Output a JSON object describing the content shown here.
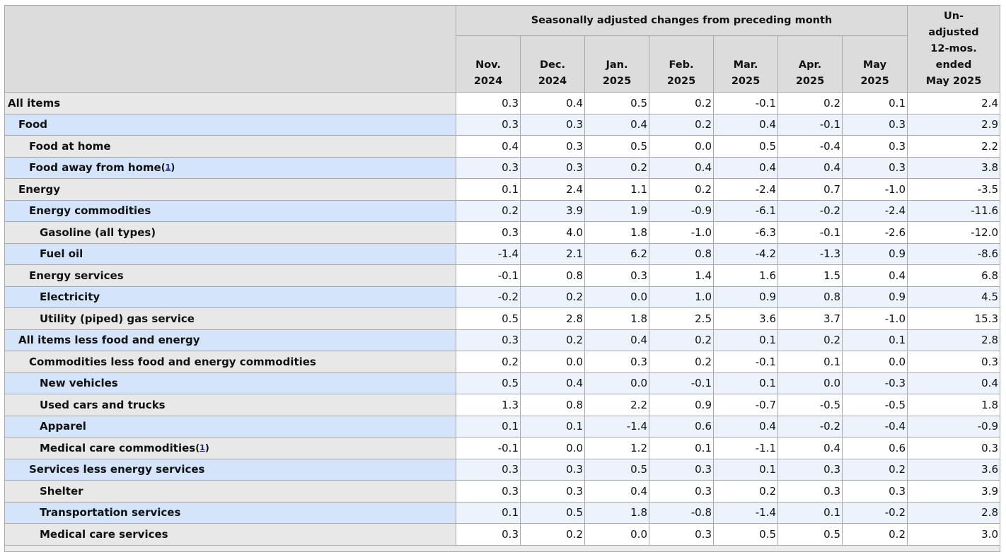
{
  "header": {
    "group_label": "Seasonally adjusted changes from preceding month",
    "months": [
      {
        "line1": "Nov.",
        "line2": "2024"
      },
      {
        "line1": "Dec.",
        "line2": "2024"
      },
      {
        "line1": "Jan.",
        "line2": "2025"
      },
      {
        "line1": "Feb.",
        "line2": "2025"
      },
      {
        "line1": "Mar.",
        "line2": "2025"
      },
      {
        "line1": "Apr.",
        "line2": "2025"
      },
      {
        "line1": "May",
        "line2": "2025"
      }
    ],
    "unadjusted": {
      "l1": "Un-",
      "l2": "adjusted",
      "l3": "12-mos.",
      "l4": "ended",
      "l5": "May 2025"
    }
  },
  "footnote_marker": "1",
  "rows": [
    {
      "label": "All items",
      "values": [
        "0.3",
        "0.4",
        "0.5",
        "0.2",
        "-0.1",
        "0.2",
        "0.1",
        "2.4"
      ]
    },
    {
      "label": "Food",
      "values": [
        "0.3",
        "0.3",
        "0.4",
        "0.2",
        "0.4",
        "-0.1",
        "0.3",
        "2.9"
      ]
    },
    {
      "label": "Food at home",
      "values": [
        "0.4",
        "0.3",
        "0.5",
        "0.0",
        "0.5",
        "-0.4",
        "0.3",
        "2.2"
      ]
    },
    {
      "label": "Food away from home",
      "values": [
        "0.3",
        "0.3",
        "0.2",
        "0.4",
        "0.4",
        "0.4",
        "0.3",
        "3.8"
      ]
    },
    {
      "label": "Energy",
      "values": [
        "0.1",
        "2.4",
        "1.1",
        "0.2",
        "-2.4",
        "0.7",
        "-1.0",
        "-3.5"
      ]
    },
    {
      "label": "Energy commodities",
      "values": [
        "0.2",
        "3.9",
        "1.9",
        "-0.9",
        "-6.1",
        "-0.2",
        "-2.4",
        "-11.6"
      ]
    },
    {
      "label": "Gasoline (all types)",
      "values": [
        "0.3",
        "4.0",
        "1.8",
        "-1.0",
        "-6.3",
        "-0.1",
        "-2.6",
        "-12.0"
      ]
    },
    {
      "label": "Fuel oil",
      "values": [
        "-1.4",
        "2.1",
        "6.2",
        "0.8",
        "-4.2",
        "-1.3",
        "0.9",
        "-8.6"
      ]
    },
    {
      "label": "Energy services",
      "values": [
        "-0.1",
        "0.8",
        "0.3",
        "1.4",
        "1.6",
        "1.5",
        "0.4",
        "6.8"
      ]
    },
    {
      "label": "Electricity",
      "values": [
        "-0.2",
        "0.2",
        "0.0",
        "1.0",
        "0.9",
        "0.8",
        "0.9",
        "4.5"
      ]
    },
    {
      "label": "Utility (piped) gas service",
      "values": [
        "0.5",
        "2.8",
        "1.8",
        "2.5",
        "3.6",
        "3.7",
        "-1.0",
        "15.3"
      ]
    },
    {
      "label": "All items less food and energy",
      "values": [
        "0.3",
        "0.2",
        "0.4",
        "0.2",
        "0.1",
        "0.2",
        "0.1",
        "2.8"
      ]
    },
    {
      "label": "Commodities less food and energy commodities",
      "values": [
        "0.2",
        "0.0",
        "0.3",
        "0.2",
        "-0.1",
        "0.1",
        "0.0",
        "0.3"
      ]
    },
    {
      "label": "New vehicles",
      "values": [
        "0.5",
        "0.4",
        "0.0",
        "-0.1",
        "0.1",
        "0.0",
        "-0.3",
        "0.4"
      ]
    },
    {
      "label": "Used cars and trucks",
      "values": [
        "1.3",
        "0.8",
        "2.2",
        "0.9",
        "-0.7",
        "-0.5",
        "-0.5",
        "1.8"
      ]
    },
    {
      "label": "Apparel",
      "values": [
        "0.1",
        "0.1",
        "-1.4",
        "0.6",
        "0.4",
        "-0.2",
        "-0.4",
        "-0.9"
      ]
    },
    {
      "label": "Medical care commodities",
      "values": [
        "-0.1",
        "0.0",
        "1.2",
        "0.1",
        "-1.1",
        "0.4",
        "0.6",
        "0.3"
      ]
    },
    {
      "label": "Services less energy services",
      "values": [
        "0.3",
        "0.3",
        "0.5",
        "0.3",
        "0.1",
        "0.3",
        "0.2",
        "3.6"
      ]
    },
    {
      "label": "Shelter",
      "values": [
        "0.3",
        "0.3",
        "0.4",
        "0.3",
        "0.2",
        "0.3",
        "0.3",
        "3.9"
      ]
    },
    {
      "label": "Transportation services",
      "values": [
        "0.1",
        "0.5",
        "1.8",
        "-0.8",
        "-1.4",
        "0.1",
        "-0.2",
        "2.8"
      ]
    },
    {
      "label": "Medical care services",
      "values": [
        "0.3",
        "0.2",
        "0.0",
        "0.3",
        "0.5",
        "0.5",
        "0.2",
        "3.0"
      ]
    }
  ]
}
